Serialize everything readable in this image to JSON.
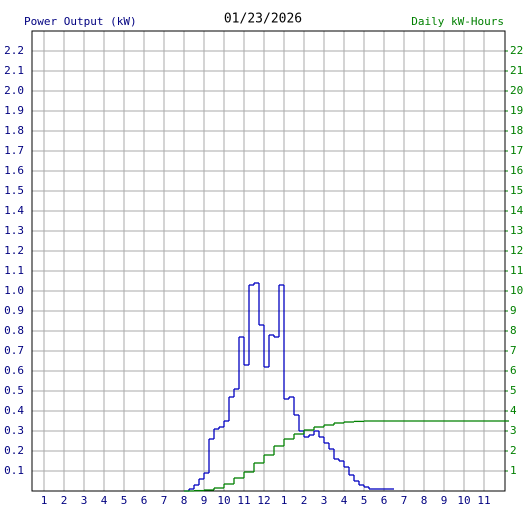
{
  "chart_data": {
    "type": "step",
    "title": "01/23/2026",
    "y_label": "Power Output (kW)",
    "y2_label": "Daily kW-Hours",
    "xlim": [
      0.4,
      24.05
    ],
    "xticks": [
      1,
      2,
      3,
      4,
      5,
      6,
      7,
      8,
      9,
      10,
      11,
      12,
      {
        "value": 13,
        "label": "1"
      },
      {
        "value": 14,
        "label": "2"
      },
      {
        "value": 15,
        "label": "3"
      },
      {
        "value": 16,
        "label": "4"
      },
      {
        "value": 17,
        "label": "5"
      },
      {
        "value": 18,
        "label": "6"
      },
      {
        "value": 19,
        "label": "7"
      },
      {
        "value": 20,
        "label": "8"
      },
      {
        "value": 21,
        "label": "9"
      },
      {
        "value": 22,
        "label": "10"
      },
      {
        "value": 23,
        "label": "11"
      }
    ],
    "ylim": [
      0,
      2.3
    ],
    "yticks": [
      0.1,
      0.2,
      0.3,
      0.4,
      0.5,
      0.6,
      0.7,
      0.8,
      0.9,
      {
        "value": 1.0,
        "label": "1.0"
      },
      1.1,
      1.2,
      1.3,
      1.4,
      1.5,
      1.6,
      1.7,
      1.8,
      1.9,
      {
        "value": 2.0,
        "label": "2.0"
      },
      2.1,
      2.2
    ],
    "y2lim": [
      0,
      23
    ],
    "y2ticks": [
      1,
      2,
      3,
      4,
      5,
      6,
      7,
      8,
      9,
      10,
      11,
      12,
      13,
      14,
      15,
      16,
      17,
      18,
      19,
      20,
      21,
      22
    ],
    "grid": true,
    "series": [
      {
        "name": "Power Output (kW)",
        "color": "#0000c0",
        "x": [
          8.0,
          8.25,
          8.5,
          8.75,
          9.0,
          9.25,
          9.5,
          9.75,
          10.0,
          10.25,
          10.5,
          10.75,
          11.0,
          11.25,
          11.5,
          11.75,
          12.0,
          12.25,
          12.5,
          12.75,
          13.0,
          13.25,
          13.5,
          13.75,
          14.0,
          14.25,
          14.5,
          14.75,
          15.0,
          15.25,
          15.5,
          15.75,
          16.0,
          16.25,
          16.5,
          16.75,
          17.0,
          17.25,
          17.5,
          17.75,
          18.0,
          18.25
        ],
        "values": [
          0,
          0.01,
          0.03,
          0.06,
          0.09,
          0.26,
          0.31,
          0.32,
          0.35,
          0.47,
          0.51,
          0.77,
          0.63,
          1.03,
          1.04,
          0.83,
          0.62,
          0.78,
          0.77,
          1.03,
          0.46,
          0.47,
          0.38,
          0.3,
          0.27,
          0.28,
          0.3,
          0.27,
          0.24,
          0.21,
          0.16,
          0.15,
          0.12,
          0.08,
          0.05,
          0.03,
          0.02,
          0.01,
          0.01,
          0.01,
          0.01,
          0.01
        ]
      },
      {
        "name": "Daily kW-Hours",
        "color": "#008000",
        "axis": "y2",
        "x": [
          8.0,
          8.5,
          9.0,
          9.5,
          10.0,
          10.5,
          11.0,
          11.5,
          12.0,
          12.5,
          13.0,
          13.5,
          14.0,
          14.5,
          15.0,
          15.5,
          16.0,
          16.5,
          17.0,
          24.0
        ],
        "values": [
          0,
          0.02,
          0.05,
          0.15,
          0.35,
          0.65,
          0.95,
          1.4,
          1.8,
          2.25,
          2.6,
          2.85,
          3.05,
          3.2,
          3.3,
          3.4,
          3.45,
          3.48,
          3.5,
          3.5
        ]
      }
    ]
  }
}
